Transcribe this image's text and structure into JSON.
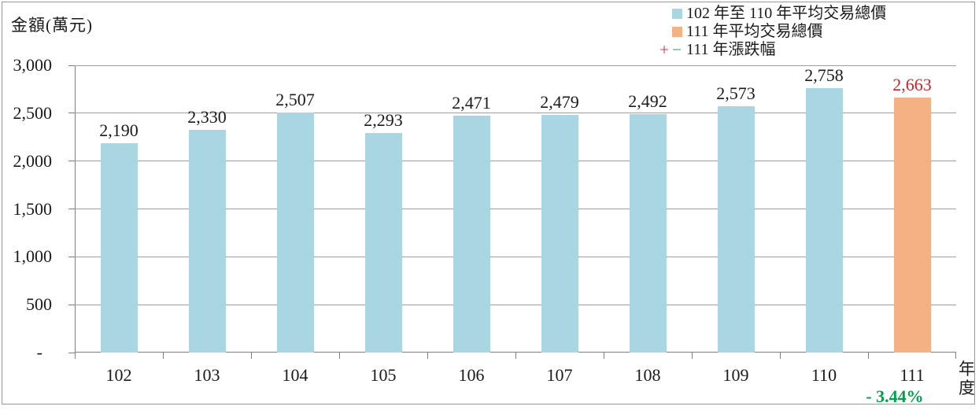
{
  "chart_data": {
    "type": "bar",
    "title": "",
    "y_axis_title": "金額(萬元)",
    "x_axis_title": "年度",
    "categories": [
      "102",
      "103",
      "104",
      "105",
      "106",
      "107",
      "108",
      "109",
      "110",
      "111"
    ],
    "values": [
      2190,
      2330,
      2507,
      2293,
      2471,
      2479,
      2492,
      2573,
      2758,
      2663
    ],
    "value_labels": [
      "2,190",
      "2,330",
      "2,507",
      "2,293",
      "2,471",
      "2,479",
      "2,492",
      "2,573",
      "2,758",
      "2,663"
    ],
    "highlight_index": 9,
    "ylim": [
      0,
      3000
    ],
    "y_ticks": [
      {
        "value": 3000,
        "label": "3,000"
      },
      {
        "value": 2500,
        "label": "2,500"
      },
      {
        "value": 2000,
        "label": "2,000"
      },
      {
        "value": 1500,
        "label": "1,500"
      },
      {
        "value": 1000,
        "label": "1,000"
      },
      {
        "value": 500,
        "label": "500"
      },
      {
        "value": 0,
        "label": "-"
      }
    ],
    "grid": true,
    "legend": {
      "position": "top-right",
      "items": [
        {
          "marker": "square",
          "color": "#a9d6e2",
          "label": "102 年至 110 年平均交易總價"
        },
        {
          "marker": "square",
          "color": "#f4b183",
          "label": "111 年平均交易總價"
        },
        {
          "marker": "plus-minus",
          "plus_marker": "+",
          "minus_marker": "−",
          "plus_color": "#cf3b4a",
          "minus_color": "#2c9e6a",
          "label": "111 年漲跌幅"
        }
      ]
    },
    "annotation": {
      "text": "- 3.44%",
      "color": "#00a14b"
    },
    "colors": {
      "primary_bar": "#a9d6e2",
      "highlight_bar": "#f4b183",
      "value_label": "#1a1a1a",
      "highlight_value_label": "#cc2428",
      "grid": "#9e9e9e",
      "axis": "#7f7f7f"
    }
  }
}
